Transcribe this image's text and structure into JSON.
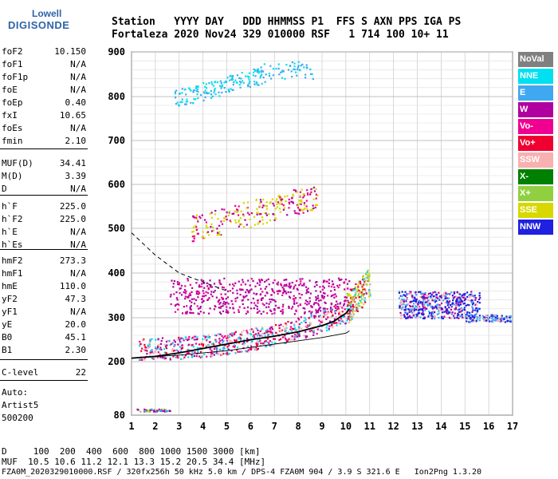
{
  "logo": {
    "top": "Lowell",
    "bottom": "DIGISONDE"
  },
  "header": {
    "row1": "Station   YYYY DAY   DDD HHMMSS P1  FFS S AXN PPS IGA PS",
    "row2": "Fortaleza 2020 Nov24 329 010000 RSF   1 714 100 10+ 11"
  },
  "params_group1": [
    {
      "label": "foF2",
      "value": "10.150"
    },
    {
      "label": "foF1",
      "value": "N/A"
    },
    {
      "label": "foF1p",
      "value": "N/A"
    },
    {
      "label": "foE",
      "value": "N/A"
    },
    {
      "label": "foEp",
      "value": "0.40"
    },
    {
      "label": "fxI",
      "value": "10.65"
    },
    {
      "label": "foEs",
      "value": "N/A"
    },
    {
      "label": "fmin",
      "value": "2.10"
    }
  ],
  "params_group2": [
    {
      "label": "MUF(D)",
      "value": "34.41"
    },
    {
      "label": "M(D)",
      "value": "3.39"
    },
    {
      "label": "D",
      "value": "N/A"
    }
  ],
  "params_group3": [
    {
      "label": "h`F",
      "value": "225.0"
    },
    {
      "label": "h`F2",
      "value": "225.0"
    },
    {
      "label": "h`E",
      "value": "N/A"
    },
    {
      "label": "h`Es",
      "value": "N/A"
    }
  ],
  "params_group4": [
    {
      "label": "hmF2",
      "value": "273.3"
    },
    {
      "label": "hmF1",
      "value": "N/A"
    },
    {
      "label": "hmE",
      "value": "110.0"
    },
    {
      "label": "yF2",
      "value": "47.3"
    },
    {
      "label": "yF1",
      "value": "N/A"
    },
    {
      "label": "yE",
      "value": "20.0"
    },
    {
      "label": "B0",
      "value": "45.1"
    },
    {
      "label": "B1",
      "value": "2.30"
    }
  ],
  "params_group5": [
    {
      "label": "C-level",
      "value": "22"
    }
  ],
  "auto": {
    "line1": "Auto:",
    "line2": "Artist5",
    "line3": "500200"
  },
  "legend": [
    {
      "label": "NoVal",
      "color": "#808080"
    },
    {
      "label": "NNE",
      "color": "#00e0f0"
    },
    {
      "label": "E",
      "color": "#40a8f0"
    },
    {
      "label": "W",
      "color": "#b000a0"
    },
    {
      "label": "Vo-",
      "color": "#f00090"
    },
    {
      "label": "Vo+",
      "color": "#f00030"
    },
    {
      "label": "SSW",
      "color": "#f8b0b0"
    },
    {
      "label": "X-",
      "color": "#008000"
    },
    {
      "label": "X+",
      "color": "#90d040"
    },
    {
      "label": "SSE",
      "color": "#d8d800"
    },
    {
      "label": "NNW",
      "color": "#2020e0"
    }
  ],
  "bottom": {
    "line1": "D     100  200  400  600  800 1000 1500 3000 [km]",
    "line2": "MUF  10.5 10.6 11.2 12.1 13.3 15.2 20.5 34.4 [MHz]",
    "line3": "FZA0M_2020329010000.RSF / 320fx256h 50 kHz 5.0 km / DPS-4 FZA0M 904 / 3.9 S 321.6 E   Ion2Png 1.3.20"
  },
  "chart_data": {
    "type": "scatter",
    "xlim": [
      1,
      17
    ],
    "ylim": [
      80,
      900
    ],
    "x_ticks": [
      "1",
      "2",
      "3",
      "4",
      "5",
      "6",
      "7",
      "8",
      "9",
      "10",
      "11",
      "12",
      "13",
      "14",
      "15",
      "16",
      "17"
    ],
    "y_ticks": [
      "80",
      "200",
      "300",
      "400",
      "500",
      "600",
      "700",
      "800",
      "900"
    ],
    "grid": true,
    "profile_curve": [
      [
        1.0,
        208
      ],
      [
        2.0,
        212
      ],
      [
        3.0,
        220
      ],
      [
        4.0,
        230
      ],
      [
        5.0,
        240
      ],
      [
        6.0,
        250
      ],
      [
        7.0,
        258
      ],
      [
        8.0,
        268
      ],
      [
        9.0,
        282
      ],
      [
        9.5,
        292
      ],
      [
        10.0,
        310
      ],
      [
        10.15,
        320
      ]
    ],
    "virtual_height_curve": [
      [
        1.0,
        208
      ],
      [
        3.0,
        215
      ],
      [
        5.0,
        225
      ],
      [
        7.0,
        240
      ],
      [
        9.0,
        255
      ],
      [
        10.0,
        265
      ],
      [
        10.15,
        270
      ]
    ],
    "dashed_curve": [
      [
        1.0,
        490
      ],
      [
        2.0,
        440
      ],
      [
        3.0,
        400
      ],
      [
        4.0,
        380
      ],
      [
        5.0,
        360
      ]
    ]
  }
}
